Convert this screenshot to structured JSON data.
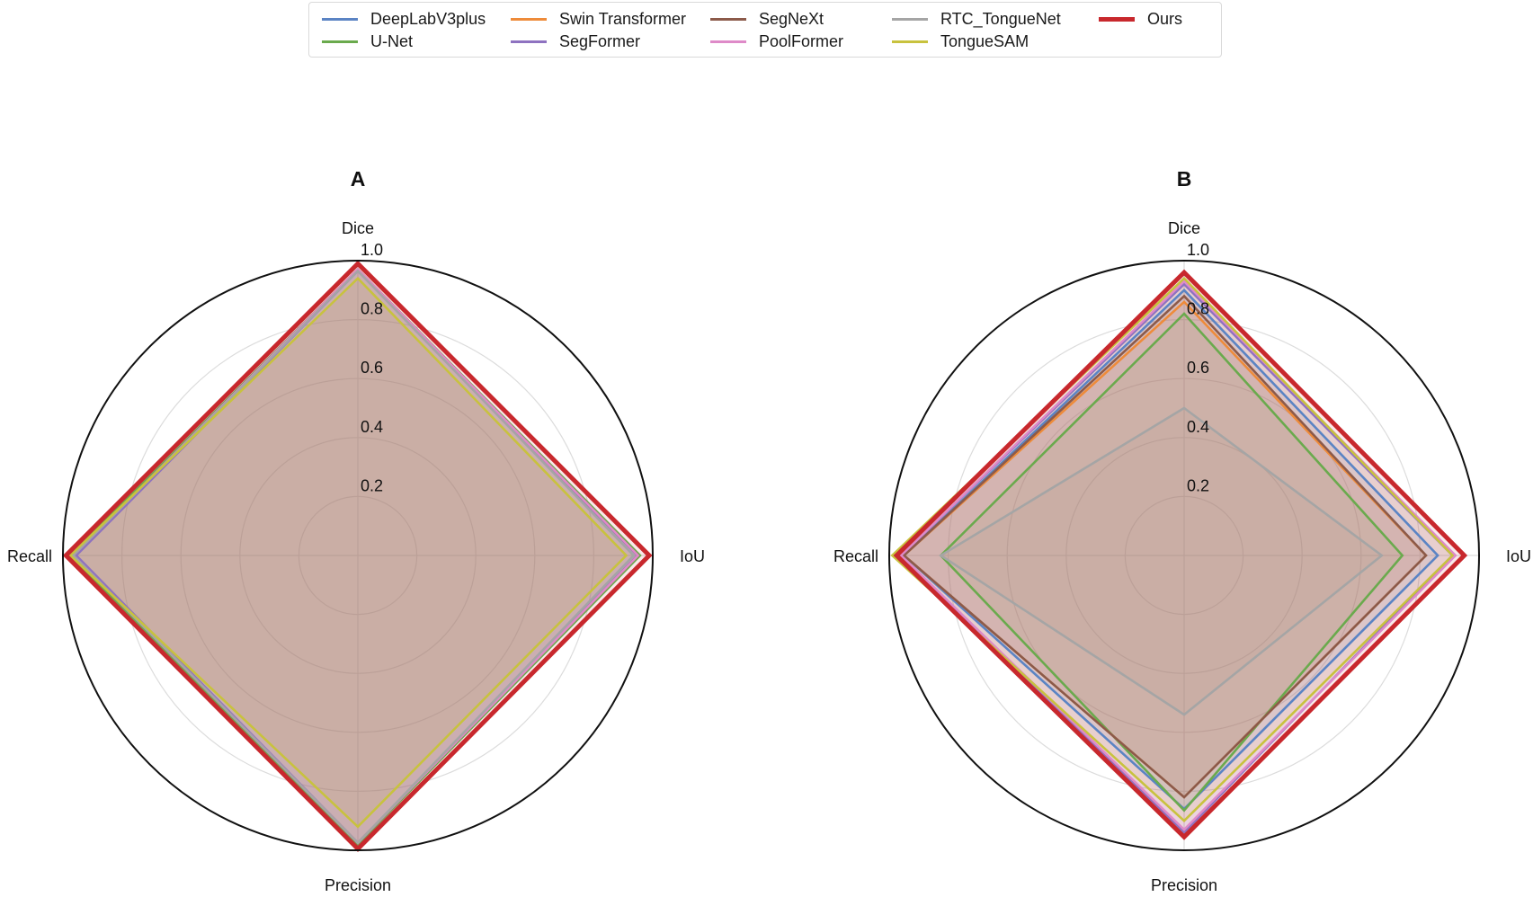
{
  "legend": {
    "items": [
      {
        "name": "DeepLabV3plus",
        "color": "#5b84c4"
      },
      {
        "name": "U-Net",
        "color": "#6aaa4d"
      },
      {
        "name": "Swin Transformer",
        "color": "#ee8b3a"
      },
      {
        "name": "SegFormer",
        "color": "#8e72c0"
      },
      {
        "name": "SegNeXt",
        "color": "#8c5a4a"
      },
      {
        "name": "PoolFormer",
        "color": "#de8ac8"
      },
      {
        "name": "RTC_TongueNet",
        "color": "#a5a5a5"
      },
      {
        "name": "TongueSAM",
        "color": "#c8c23e"
      },
      {
        "name": "Ours",
        "color": "#c8282d"
      }
    ]
  },
  "chart_data": [
    {
      "type": "radar",
      "title": "A",
      "axes": [
        "Dice",
        "IoU",
        "Precision",
        "Recall"
      ],
      "rticks": [
        "0.2",
        "0.4",
        "0.6",
        "0.8",
        "1.0"
      ],
      "rlim": [
        0,
        1.0
      ],
      "grid": true,
      "legend_position": "top-center",
      "series": [
        {
          "name": "DeepLabV3plus",
          "values": [
            0.97,
            0.95,
            0.975,
            0.96
          ]
        },
        {
          "name": "U-Net",
          "values": [
            0.97,
            0.957,
            0.98,
            0.975
          ]
        },
        {
          "name": "Swin Transformer",
          "values": [
            0.97,
            0.95,
            0.975,
            0.965
          ]
        },
        {
          "name": "SegFormer",
          "values": [
            0.965,
            0.948,
            0.975,
            0.955
          ]
        },
        {
          "name": "SegNeXt",
          "values": [
            0.97,
            0.95,
            0.975,
            0.965
          ]
        },
        {
          "name": "PoolFormer",
          "values": [
            0.97,
            0.95,
            0.975,
            0.965
          ]
        },
        {
          "name": "RTC_TongueNet",
          "values": [
            0.965,
            0.935,
            0.975,
            0.965
          ]
        },
        {
          "name": "TongueSAM",
          "values": [
            0.94,
            0.91,
            0.92,
            0.975
          ]
        },
        {
          "name": "Ours",
          "values": [
            0.99,
            0.988,
            0.995,
            0.99
          ]
        }
      ]
    },
    {
      "type": "radar",
      "title": "B",
      "axes": [
        "Dice",
        "IoU",
        "Precision",
        "Recall"
      ],
      "rticks": [
        "0.2",
        "0.4",
        "0.6",
        "0.8",
        "1.0"
      ],
      "rlim": [
        0,
        1.0
      ],
      "grid": true,
      "legend_position": "top-center",
      "series": [
        {
          "name": "DeepLabV3plus",
          "values": [
            0.9,
            0.86,
            0.86,
            0.95
          ]
        },
        {
          "name": "U-Net",
          "values": [
            0.82,
            0.74,
            0.865,
            0.825
          ]
        },
        {
          "name": "Swin Transformer",
          "values": [
            0.86,
            0.82,
            0.82,
            0.95
          ]
        },
        {
          "name": "SegFormer",
          "values": [
            0.92,
            0.91,
            0.94,
            0.96
          ]
        },
        {
          "name": "SegNeXt",
          "values": [
            0.88,
            0.82,
            0.82,
            0.95
          ]
        },
        {
          "name": "PoolFormer",
          "values": [
            0.93,
            0.92,
            0.93,
            0.96
          ]
        },
        {
          "name": "RTC_TongueNet",
          "values": [
            0.5,
            0.67,
            0.54,
            0.825
          ]
        },
        {
          "name": "TongueSAM",
          "values": [
            0.94,
            0.91,
            0.9,
            0.99
          ]
        },
        {
          "name": "Ours",
          "values": [
            0.96,
            0.95,
            0.955,
            0.975
          ]
        }
      ]
    }
  ]
}
